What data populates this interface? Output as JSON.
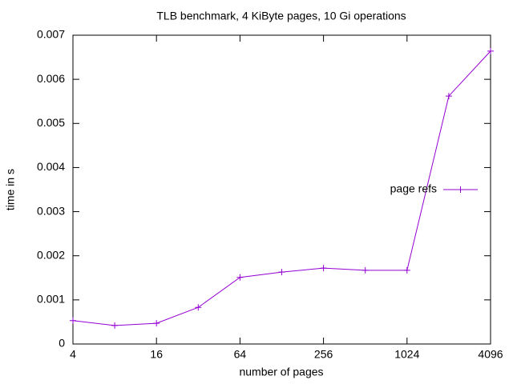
{
  "chart_data": {
    "type": "line",
    "title": "TLB benchmark, 4 KiByte pages, 10 Gi operations",
    "xlabel": "number of pages",
    "ylabel": "time in s",
    "x": [
      4,
      8,
      16,
      32,
      64,
      128,
      256,
      512,
      1024,
      2048,
      4096
    ],
    "series": [
      {
        "name": "page refs",
        "color": "#9400d3",
        "values": [
          0.00053,
          0.00042,
          0.00047,
          0.00083,
          0.00151,
          0.00163,
          0.00172,
          0.00167,
          0.00167,
          0.00562,
          0.00664
        ]
      }
    ],
    "xlog": true,
    "logbase": 2,
    "xlim": [
      4,
      4096
    ],
    "xticks": [
      4,
      16,
      64,
      256,
      1024,
      4096
    ],
    "ylim": [
      0,
      0.007
    ],
    "yticks": [
      0,
      0.001,
      0.002,
      0.003,
      0.004,
      0.005,
      0.006,
      0.007
    ],
    "grid": false,
    "legend": "right"
  }
}
